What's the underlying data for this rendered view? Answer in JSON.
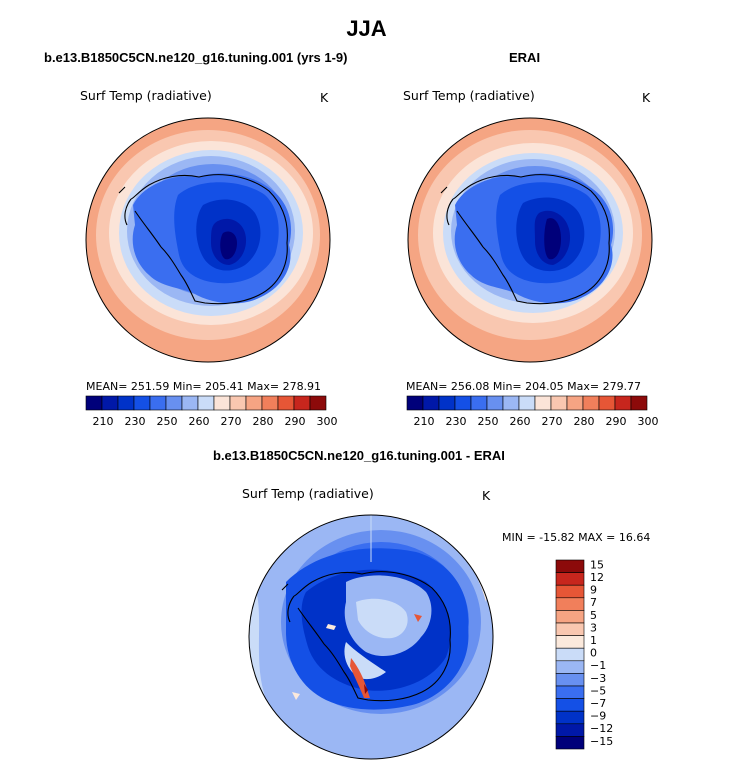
{
  "figure": {
    "title": "JJA",
    "colors": {
      "full_scale": [
        "#00007a",
        "#0018a8",
        "#0032c8",
        "#1450e6",
        "#3a6ef0",
        "#6890f0",
        "#9bb7f4",
        "#cadcf8",
        "#fbe4d8",
        "#f9c7b0",
        "#f6a483",
        "#f17f5b",
        "#e65636",
        "#c7261d",
        "#8c0a0a"
      ],
      "diff_scale": [
        "#00007a",
        "#0018a8",
        "#0032c8",
        "#1450e6",
        "#3a6ef0",
        "#6890f0",
        "#9bb7f4",
        "#cadcf8",
        "#fbe9dc",
        "#f9c7b0",
        "#f6a483",
        "#f17f5b",
        "#e65636",
        "#c7261d",
        "#8c0a0a"
      ],
      "land_outline": "#000000"
    }
  },
  "chart_data": [
    {
      "type": "heatmap",
      "projection": "south-polar-stereographic",
      "title": "b.e13.B1850C5CN.ne120_g16.tuning.001 (yrs 1-9)",
      "variable": "Surf Temp (radiative)",
      "units": "K",
      "stats": {
        "mean": 251.59,
        "min": 205.41,
        "max": 278.91
      },
      "stats_text": "MEAN= 251.59   Min= 205.41   Max= 278.91",
      "colorbar": {
        "tick_labels": [
          "210",
          "230",
          "250",
          "260",
          "270",
          "280",
          "290",
          "300"
        ],
        "levels": [
          210,
          220,
          230,
          240,
          250,
          255,
          260,
          265,
          270,
          275,
          280,
          285,
          290,
          300
        ]
      }
    },
    {
      "type": "heatmap",
      "projection": "south-polar-stereographic",
      "title": "ERAI",
      "variable": "Surf Temp (radiative)",
      "units": "K",
      "stats": {
        "mean": 256.08,
        "min": 204.05,
        "max": 279.77
      },
      "stats_text": "MEAN= 256.08   Min= 204.05   Max= 279.77",
      "colorbar": {
        "tick_labels": [
          "210",
          "230",
          "250",
          "260",
          "270",
          "280",
          "290",
          "300"
        ],
        "levels": [
          210,
          220,
          230,
          240,
          250,
          255,
          260,
          265,
          270,
          275,
          280,
          285,
          290,
          300
        ]
      }
    },
    {
      "type": "heatmap",
      "projection": "south-polar-stereographic",
      "title": "b.e13.B1850C5CN.ne120_g16.tuning.001 - ERAI",
      "variable": "Surf Temp (radiative)",
      "units": "K",
      "stats": {
        "min": -15.82,
        "max": 16.64
      },
      "stats_text": "MIN = -15.82 MAX =  16.64",
      "colorbar": {
        "orientation": "vertical",
        "tick_labels": [
          "15",
          "12",
          "9",
          "7",
          "5",
          "3",
          "1",
          "0",
          "-1",
          "-3",
          "-5",
          "-7",
          "-9",
          "-12",
          "-15"
        ]
      }
    }
  ]
}
